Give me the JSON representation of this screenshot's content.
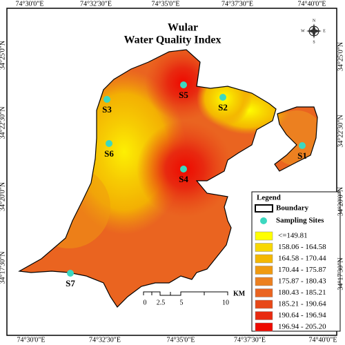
{
  "title": [
    "Wular",
    "Water Quality Index"
  ],
  "coordinates": {
    "top": [
      "74°30'0\"E",
      "74°32'30\"E",
      "74°35'0\"E",
      "74°37'30\"E",
      "74°40'0\"E"
    ],
    "bottom": [
      "74°30'0\"E",
      "74°32'30\"E",
      "74°35'0\"E",
      "74°37'30\"E",
      "74°40'0\"E"
    ],
    "left": [
      "34°25'0\"N",
      "34°22'30\"N",
      "34°20'0\"N",
      "34°17'30\"N"
    ],
    "right": [
      "34°25'0\"N",
      "34°22'30\"N",
      "34°20'0\"N",
      "34°17'30\"N"
    ]
  },
  "sites": [
    "S1",
    "S2",
    "S3",
    "S4",
    "S5",
    "S6",
    "S7"
  ],
  "legend": {
    "title": "Legend",
    "boundary": "Boundary",
    "sampling_sites": "Sampling Sites",
    "classes": [
      {
        "label": "<=149.81",
        "color": "#ffff00"
      },
      {
        "label": "158.06 - 164.58",
        "color": "#f8d800"
      },
      {
        "label": "164.58 - 170.44",
        "color": "#f4b800"
      },
      {
        "label": "170.44 - 175.87",
        "color": "#f09a10"
      },
      {
        "label": "175.87 - 180.43",
        "color": "#ec8020"
      },
      {
        "label": "180.43 - 185.21",
        "color": "#ea6420"
      },
      {
        "label": "185.21 - 190.64",
        "color": "#e84818"
      },
      {
        "label": "190.64 - 196.94",
        "color": "#e82a10"
      },
      {
        "label": "196.94 - 205.20",
        "color": "#ee0a00"
      }
    ]
  },
  "scale_bar": {
    "labels": [
      "0",
      "2.5",
      "5",
      "10"
    ],
    "unit": "KM"
  },
  "compass": {
    "n": "N",
    "s": "S",
    "e": "E",
    "w": "W"
  }
}
